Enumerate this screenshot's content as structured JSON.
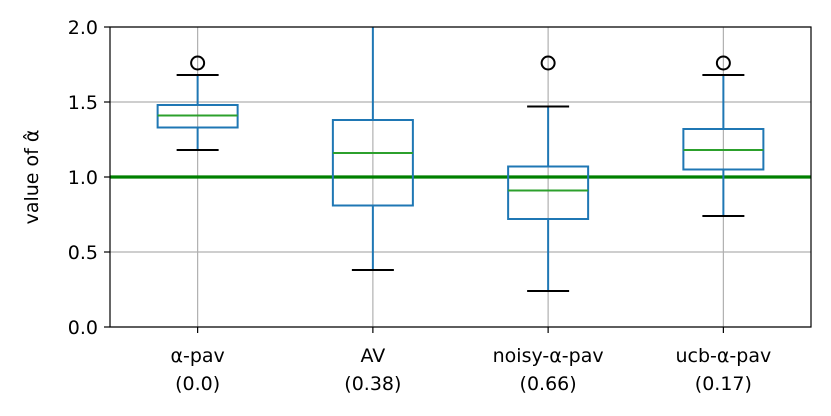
{
  "chart_data": {
    "type": "boxplot",
    "ylabel": "value of α̂",
    "ylim": [
      0.0,
      2.0
    ],
    "yticks": [
      "0.0",
      "0.5",
      "1.0",
      "1.5",
      "2.0"
    ],
    "ytick_values": [
      0.0,
      0.5,
      1.0,
      1.5,
      2.0
    ],
    "grid": true,
    "reference_line": {
      "y": 1.0,
      "color": "#008000"
    },
    "colors": {
      "box": "#1f77b4",
      "median": "#2ca02c",
      "whisker_cap": "#000000",
      "grid": "#b0b0b0"
    },
    "categories": [
      {
        "label": "α-pav",
        "sublabel": "(0.0)",
        "q1": 1.33,
        "median": 1.41,
        "q3": 1.48,
        "whisker_low": 1.18,
        "whisker_high": 1.68,
        "outliers": [
          1.76
        ]
      },
      {
        "label": "AV",
        "sublabel": "(0.38)",
        "q1": 0.81,
        "median": 1.16,
        "q3": 1.38,
        "whisker_low": 0.38,
        "whisker_high": 2.0,
        "outliers": []
      },
      {
        "label": "noisy-α-pav",
        "sublabel": "(0.66)",
        "q1": 0.72,
        "median": 0.91,
        "q3": 1.07,
        "whisker_low": 0.24,
        "whisker_high": 1.47,
        "outliers": [
          1.76
        ]
      },
      {
        "label": "ucb-α-pav",
        "sublabel": "(0.17)",
        "q1": 1.05,
        "median": 1.18,
        "q3": 1.32,
        "whisker_low": 0.74,
        "whisker_high": 1.68,
        "outliers": [
          1.76
        ]
      }
    ]
  }
}
